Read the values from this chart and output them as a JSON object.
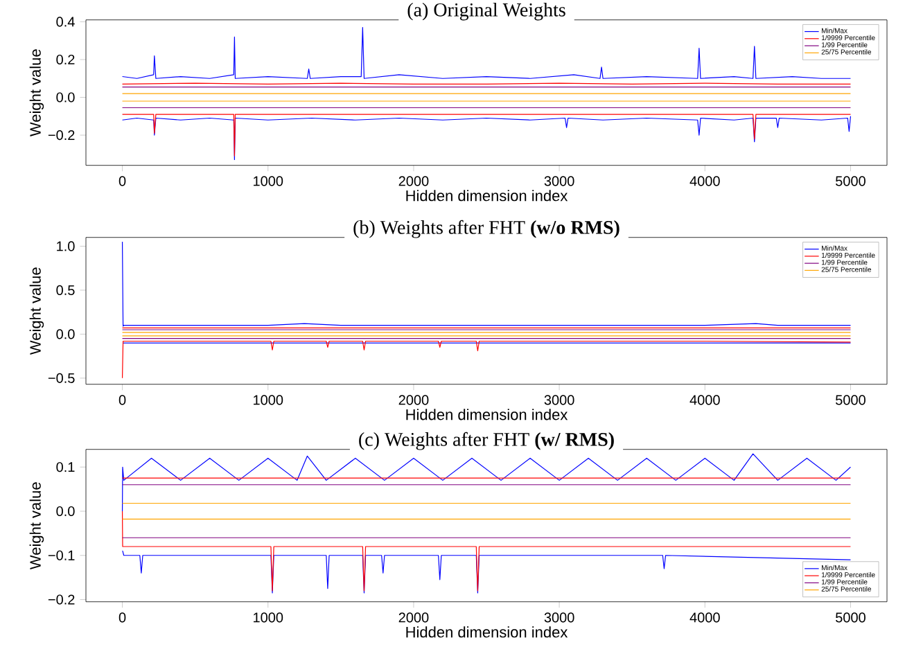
{
  "chart_data": [
    {
      "type": "line",
      "title": "(a) Original Weights",
      "xlabel": "Hidden dimension index",
      "ylabel": "Weight value",
      "xlim": [
        -250,
        5250
      ],
      "xticks": [
        0,
        1000,
        2000,
        3000,
        4000,
        5000
      ],
      "ylim": [
        -0.36,
        0.41
      ],
      "yticks": [
        {
          "value": -0.2,
          "label": "−0.2"
        },
        {
          "value": 0,
          "label": "0.0"
        },
        {
          "value": 0.2,
          "label": "0.2"
        },
        {
          "value": 0.4,
          "label": "0.4"
        }
      ],
      "legend": "top right",
      "series": [
        {
          "name": "Min/Max",
          "color": "#0000ff",
          "x": [
            0,
            100,
            215,
            220,
            230,
            400,
            600,
            765,
            770,
            775,
            1000,
            1270,
            1280,
            1290,
            1500,
            1640,
            1650,
            1660,
            1900,
            2200,
            2500,
            2800,
            3100,
            3280,
            3290,
            3300,
            3600,
            3950,
            3960,
            3970,
            4200,
            4330,
            4340,
            4350,
            4600,
            4800,
            5000
          ],
          "values": [
            0.11,
            0.1,
            0.12,
            0.22,
            0.1,
            0.11,
            0.1,
            0.12,
            0.32,
            0.1,
            0.11,
            0.1,
            0.15,
            0.1,
            0.11,
            0.11,
            0.37,
            0.1,
            0.12,
            0.1,
            0.11,
            0.1,
            0.12,
            0.1,
            0.16,
            0.1,
            0.11,
            0.1,
            0.26,
            0.1,
            0.11,
            0.1,
            0.27,
            0.1,
            0.11,
            0.1,
            0.1
          ]
        },
        {
          "color": "#0000ff",
          "x": [
            0,
            100,
            215,
            220,
            230,
            400,
            600,
            765,
            770,
            775,
            1000,
            1300,
            1600,
            1900,
            2200,
            2500,
            2800,
            3040,
            3050,
            3060,
            3300,
            3600,
            3950,
            3960,
            3970,
            4200,
            4330,
            4340,
            4350,
            4490,
            4500,
            4510,
            4800,
            4980,
            4990,
            5000
          ],
          "values": [
            -0.12,
            -0.11,
            -0.12,
            -0.2,
            -0.11,
            -0.12,
            -0.11,
            -0.12,
            -0.33,
            -0.11,
            -0.12,
            -0.11,
            -0.12,
            -0.11,
            -0.12,
            -0.11,
            -0.12,
            -0.11,
            -0.16,
            -0.11,
            -0.12,
            -0.11,
            -0.12,
            -0.2,
            -0.11,
            -0.12,
            -0.11,
            -0.235,
            -0.11,
            -0.11,
            -0.16,
            -0.11,
            -0.12,
            -0.11,
            -0.18,
            -0.1
          ]
        },
        {
          "name": "1/9999 Percentile",
          "color": "#ff0000",
          "x": [
            0,
            500,
            1000,
            1500,
            2000,
            2500,
            3000,
            3500,
            4000,
            4500,
            5000
          ],
          "values": [
            0.07,
            0.075,
            0.07,
            0.075,
            0.07,
            0.07,
            0.075,
            0.07,
            0.075,
            0.07,
            0.07
          ]
        },
        {
          "color": "#ff0000",
          "x": [
            0,
            215,
            220,
            230,
            765,
            770,
            775,
            1500,
            2500,
            3500,
            4330,
            4340,
            4350,
            5000
          ],
          "values": [
            -0.09,
            -0.09,
            -0.19,
            -0.09,
            -0.09,
            -0.31,
            -0.09,
            -0.09,
            -0.09,
            -0.09,
            -0.09,
            -0.22,
            -0.09,
            -0.09
          ]
        },
        {
          "name": "1/99 Percentile",
          "color": "#800080",
          "x": [
            0,
            5000
          ],
          "values": [
            0.055,
            0.055
          ]
        },
        {
          "color": "#800080",
          "x": [
            0,
            5000
          ],
          "values": [
            -0.055,
            -0.055
          ]
        },
        {
          "name": "25/75 Percentile",
          "color": "#ffa500",
          "x": [
            0,
            5000
          ],
          "values": [
            0.02,
            0.02
          ]
        },
        {
          "color": "#ffa500",
          "x": [
            0,
            5000
          ],
          "values": [
            -0.02,
            -0.02
          ]
        }
      ]
    },
    {
      "type": "line",
      "title": "(b) Weights after FHT **(w/o RMS)**",
      "xlabel": "Hidden dimension index",
      "ylabel": "Weight value",
      "xlim": [
        -250,
        5250
      ],
      "xticks": [
        0,
        1000,
        2000,
        3000,
        4000,
        5000
      ],
      "ylim": [
        -0.57,
        1.1
      ],
      "yticks": [
        {
          "value": -0.5,
          "label": "−0.5"
        },
        {
          "value": 0,
          "label": "0.0"
        },
        {
          "value": 0.5,
          "label": "0.5"
        },
        {
          "value": 1,
          "label": "1.0"
        }
      ],
      "legend": "top right",
      "series": [
        {
          "name": "Min/Max",
          "color": "#0000ff",
          "x": [
            0,
            5,
            10,
            500,
            1000,
            1250,
            1500,
            2000,
            2500,
            3000,
            3500,
            4000,
            4350,
            4500,
            5000
          ],
          "values": [
            1.05,
            0.09,
            0.1,
            0.1,
            0.1,
            0.12,
            0.1,
            0.1,
            0.1,
            0.1,
            0.1,
            0.1,
            0.12,
            0.1,
            0.1
          ]
        },
        {
          "color": "#0000ff",
          "x": [
            5,
            10,
            1000,
            2000,
            3000,
            4000,
            5000
          ],
          "values": [
            -0.1,
            -0.1,
            -0.1,
            -0.1,
            -0.1,
            -0.1,
            -0.1
          ]
        },
        {
          "name": "1/9999 Percentile",
          "color": "#ff0000",
          "x": [
            0,
            5000
          ],
          "values": [
            0.07,
            0.07
          ]
        },
        {
          "color": "#ff0000",
          "x": [
            0,
            5,
            10,
            1020,
            1030,
            1040,
            1400,
            1410,
            1420,
            1650,
            1660,
            1670,
            2170,
            2180,
            2190,
            2430,
            2440,
            2450,
            3000,
            4000,
            5000
          ],
          "values": [
            -0.5,
            -0.08,
            -0.08,
            -0.08,
            -0.18,
            -0.08,
            -0.08,
            -0.15,
            -0.08,
            -0.08,
            -0.18,
            -0.08,
            -0.08,
            -0.15,
            -0.08,
            -0.08,
            -0.19,
            -0.08,
            -0.08,
            -0.08,
            -0.09
          ]
        },
        {
          "name": "1/99 Percentile",
          "color": "#800080",
          "x": [
            0,
            5000
          ],
          "values": [
            0.05,
            0.05
          ]
        },
        {
          "color": "#800080",
          "x": [
            0,
            5000
          ],
          "values": [
            -0.05,
            -0.05
          ]
        },
        {
          "name": "25/75 Percentile",
          "color": "#ffa500",
          "x": [
            0,
            5000
          ],
          "values": [
            0.02,
            0.02
          ]
        },
        {
          "color": "#ffa500",
          "x": [
            0,
            5000
          ],
          "values": [
            -0.02,
            -0.02
          ]
        }
      ]
    },
    {
      "type": "line",
      "title": "(c) Weights after FHT **(w/ RMS)**",
      "xlabel": "Hidden dimension index",
      "ylabel": "Weight value",
      "xlim": [
        -250,
        5250
      ],
      "xticks": [
        0,
        1000,
        2000,
        3000,
        4000,
        5000
      ],
      "ylim": [
        -0.205,
        0.14
      ],
      "yticks": [
        {
          "value": -0.2,
          "label": "−0.2"
        },
        {
          "value": -0.1,
          "label": "−0.1"
        },
        {
          "value": 0,
          "label": "0.0"
        },
        {
          "value": 0.1,
          "label": "0.1"
        }
      ],
      "legend": "bottom right",
      "series": [
        {
          "name": "Min/Max",
          "color": "#0000ff",
          "x": [
            0,
            2,
            10,
            200,
            400,
            600,
            800,
            1000,
            1200,
            1270,
            1400,
            1600,
            1800,
            2000,
            2200,
            2400,
            2600,
            2800,
            3000,
            3200,
            3400,
            3600,
            3800,
            4000,
            4200,
            4330,
            4500,
            4700,
            4900,
            5000
          ],
          "values": [
            0.0,
            0.1,
            0.07,
            0.12,
            0.07,
            0.12,
            0.07,
            0.12,
            0.07,
            0.125,
            0.07,
            0.12,
            0.07,
            0.12,
            0.07,
            0.12,
            0.07,
            0.12,
            0.07,
            0.12,
            0.07,
            0.12,
            0.07,
            0.12,
            0.07,
            0.13,
            0.07,
            0.12,
            0.07,
            0.1
          ]
        },
        {
          "color": "#0000ff",
          "x": [
            0,
            2,
            10,
            120,
            130,
            140,
            1020,
            1030,
            1040,
            1400,
            1410,
            1420,
            1650,
            1660,
            1670,
            1780,
            1790,
            1800,
            2170,
            2180,
            2190,
            2430,
            2440,
            2450,
            3710,
            3720,
            3730,
            5000
          ],
          "values": [
            -0.09,
            -0.09,
            -0.1,
            -0.1,
            -0.14,
            -0.1,
            -0.1,
            -0.185,
            -0.1,
            -0.1,
            -0.175,
            -0.1,
            -0.1,
            -0.185,
            -0.1,
            -0.1,
            -0.14,
            -0.1,
            -0.1,
            -0.155,
            -0.1,
            -0.1,
            -0.185,
            -0.1,
            -0.1,
            -0.13,
            -0.1,
            -0.11
          ]
        },
        {
          "name": "1/9999 Percentile",
          "color": "#ff0000",
          "x": [
            0,
            5000
          ],
          "values": [
            0.075,
            0.075
          ]
        },
        {
          "color": "#ff0000",
          "x": [
            0,
            2,
            1020,
            1030,
            1040,
            1650,
            1660,
            1670,
            2430,
            2440,
            2450,
            5000
          ],
          "values": [
            0,
            -0.08,
            -0.08,
            -0.18,
            -0.08,
            -0.08,
            -0.18,
            -0.08,
            -0.08,
            -0.18,
            -0.08,
            -0.08
          ]
        },
        {
          "name": "1/99 Percentile",
          "color": "#800080",
          "x": [
            0,
            5000
          ],
          "values": [
            0.06,
            0.06
          ]
        },
        {
          "color": "#800080",
          "x": [
            0,
            5000
          ],
          "values": [
            -0.06,
            -0.06
          ]
        },
        {
          "name": "25/75 Percentile",
          "color": "#ffa500",
          "x": [
            0,
            5000
          ],
          "values": [
            0.018,
            0.018
          ]
        },
        {
          "color": "#ffa500",
          "x": [
            0,
            5000
          ],
          "values": [
            -0.018,
            -0.018
          ]
        }
      ]
    }
  ]
}
